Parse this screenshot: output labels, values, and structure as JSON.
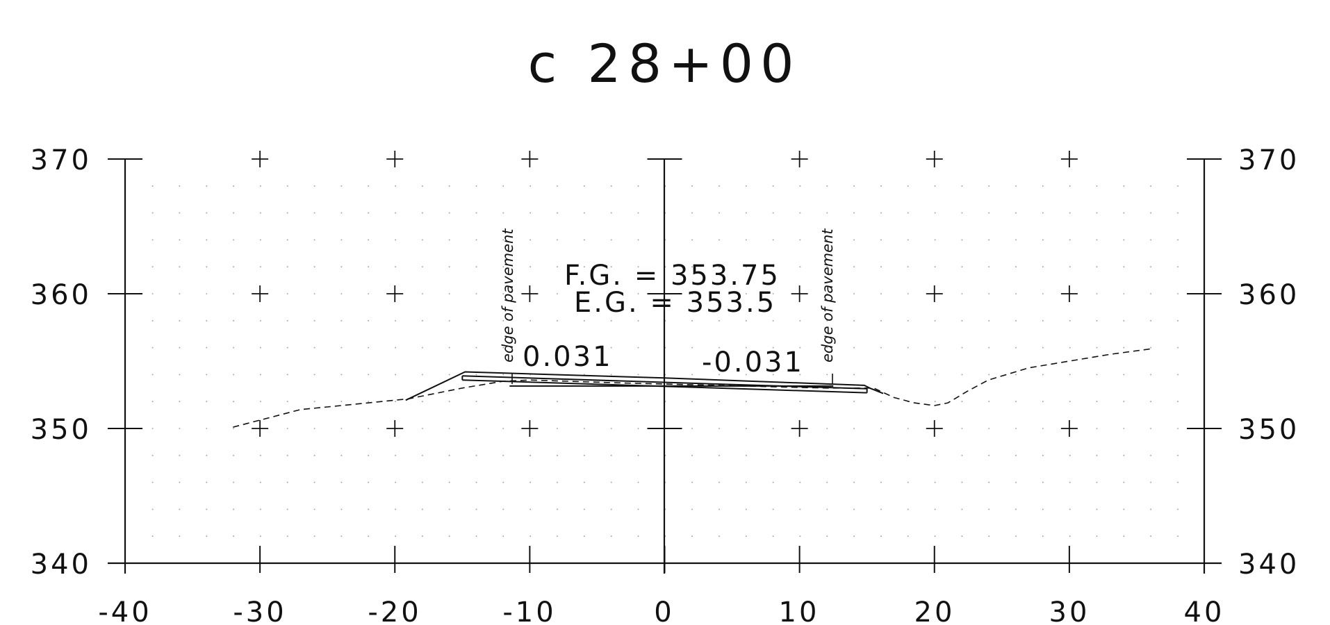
{
  "title": "c 28+00",
  "axes": {
    "x_ticks": [
      "-40",
      "-30",
      "-20",
      "-10",
      "0",
      "10",
      "20",
      "30",
      "40"
    ],
    "y_ticks": [
      "340",
      "350",
      "360",
      "370"
    ],
    "x_values": [
      -40,
      -30,
      -20,
      -10,
      0,
      10,
      20,
      30,
      40
    ],
    "y_values": [
      340,
      350,
      360,
      370
    ],
    "xlim": [
      -40,
      40
    ],
    "ylim": [
      340,
      370
    ],
    "minor_grid": "dotted, every 2 ft"
  },
  "annotations": {
    "finished_grade": "F.G. = 353.75",
    "existing_grade": "E.G. = 353.5",
    "left_slope": "0.031",
    "right_slope": "-0.031",
    "left_edge_label": "edge of pavement",
    "right_edge_label": "edge of pavement"
  },
  "chart_data": {
    "type": "line",
    "title": "c 28+00",
    "xlabel": "",
    "ylabel": "",
    "xlim": [
      -40,
      40
    ],
    "ylim": [
      340,
      370
    ],
    "grid": true,
    "series": [
      {
        "name": "",
        "style": "dashed",
        "x": [
          -32,
          -27,
          -23,
          -19,
          -15,
          -12,
          -10,
          -7,
          -4,
          0,
          4,
          8,
          12,
          15.5,
          17,
          18.5,
          20,
          21,
          22.5,
          24,
          27,
          30,
          33,
          36
        ],
        "y": [
          350.1,
          351.4,
          351.8,
          352.2,
          353.0,
          353.5,
          353.6,
          353.5,
          353.4,
          353.3,
          353.2,
          353.1,
          353.0,
          353.0,
          352.3,
          351.9,
          351.7,
          351.9,
          352.8,
          353.6,
          354.5,
          355.0,
          355.5,
          355.9
        ]
      },
      {
        "name": "",
        "style": "solid",
        "x": [
          -19.2,
          -14.8,
          0,
          14.8,
          15.2,
          16.2
        ],
        "y": [
          352.1,
          354.2,
          353.75,
          353.2,
          353.0,
          352.6
        ]
      },
      {
        "name": "",
        "style": "solid",
        "x": [
          -15,
          15
        ],
        "y": [
          353.9,
          352.95
        ]
      },
      {
        "name": "",
        "style": "solid",
        "x": [
          -15,
          15
        ],
        "y": [
          353.6,
          352.65
        ]
      },
      {
        "name": "",
        "style": "solid",
        "x": [
          -11.5,
          12.5
        ],
        "y": [
          353.15,
          353.15
        ]
      }
    ]
  }
}
